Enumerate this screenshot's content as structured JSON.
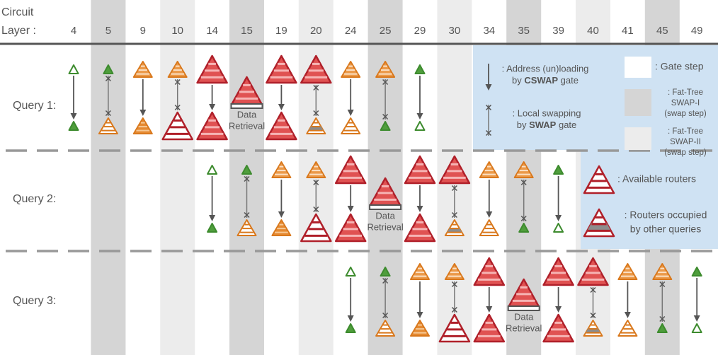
{
  "header": {
    "title": [
      "Circuit",
      "Layer :"
    ],
    "layers": [
      4,
      5,
      9,
      10,
      14,
      15,
      19,
      20,
      24,
      25,
      29,
      30,
      34,
      35,
      39,
      40,
      41,
      45,
      49
    ]
  },
  "queries": [
    {
      "label": "Query 1:",
      "retrieval": [
        "Data",
        "Retrieval"
      ]
    },
    {
      "label": "Query 2:",
      "retrieval": [
        "Data",
        "Retrieval"
      ]
    },
    {
      "label": "Query 3:",
      "retrieval": [
        "Data",
        "Retrieval"
      ]
    }
  ],
  "legend": {
    "cswap": [
      ": Address (un)loading",
      [
        "by ",
        "CSWAP",
        " gate"
      ]
    ],
    "swap": [
      ": Local swapping",
      [
        "by ",
        "SWAP",
        " gate"
      ]
    ],
    "gate": [
      ": Gate step"
    ],
    "swap1": [
      ": Fat-Tree",
      "SWAP-I",
      "(swap step)"
    ],
    "swap2": [
      ": Fat-Tree",
      "SWAP-II",
      "(swap step)"
    ],
    "available": [
      ": Available routers"
    ],
    "occupied": [
      ": Routers occupied",
      "by other queries"
    ]
  }
}
